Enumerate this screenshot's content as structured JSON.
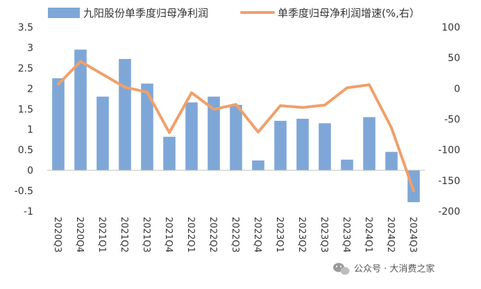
{
  "chart_data": {
    "type": "bar",
    "categories": [
      "2020Q3",
      "2020Q4",
      "2021Q1",
      "2021Q2",
      "2021Q3",
      "2021Q4",
      "2022Q1",
      "2022Q2",
      "2022Q3",
      "2022Q4",
      "2023Q1",
      "2023Q2",
      "2023Q3",
      "2023Q4",
      "2024Q1",
      "2024Q2",
      "2024Q3"
    ],
    "series": [
      {
        "name": "九阳股份单季度归母净利润",
        "type": "bar",
        "axis": "left",
        "color": "#7ea7d8",
        "values": [
          2.25,
          2.95,
          1.8,
          2.72,
          2.12,
          0.82,
          1.66,
          1.8,
          1.6,
          0.24,
          1.21,
          1.26,
          1.15,
          0.26,
          1.3,
          0.45,
          -0.78
        ]
      },
      {
        "name": "单季度归母净利润增速(%,右）",
        "type": "line",
        "axis": "right",
        "color": "#f0a06a",
        "values": [
          7,
          44,
          23,
          2,
          -6,
          -72,
          -7,
          -34,
          -26,
          -71,
          -28,
          -31,
          -27,
          1,
          6,
          -64,
          -167
        ]
      }
    ],
    "y_left": {
      "min": -1,
      "max": 3.5,
      "step": 0.5,
      "ticks": [
        "-1",
        "-0.5",
        "0",
        "0.5",
        "1",
        "1.5",
        "2",
        "2.5",
        "3",
        "3.5"
      ]
    },
    "y_right": {
      "min": -200,
      "max": 100,
      "step": 50,
      "ticks": [
        "-200",
        "-150",
        "-100",
        "-50",
        "0",
        "50",
        "100"
      ]
    },
    "legend": "top",
    "grid": false
  },
  "watermark": {
    "icon": "wechat-icon",
    "text": "公众号 · 大消费之家"
  }
}
